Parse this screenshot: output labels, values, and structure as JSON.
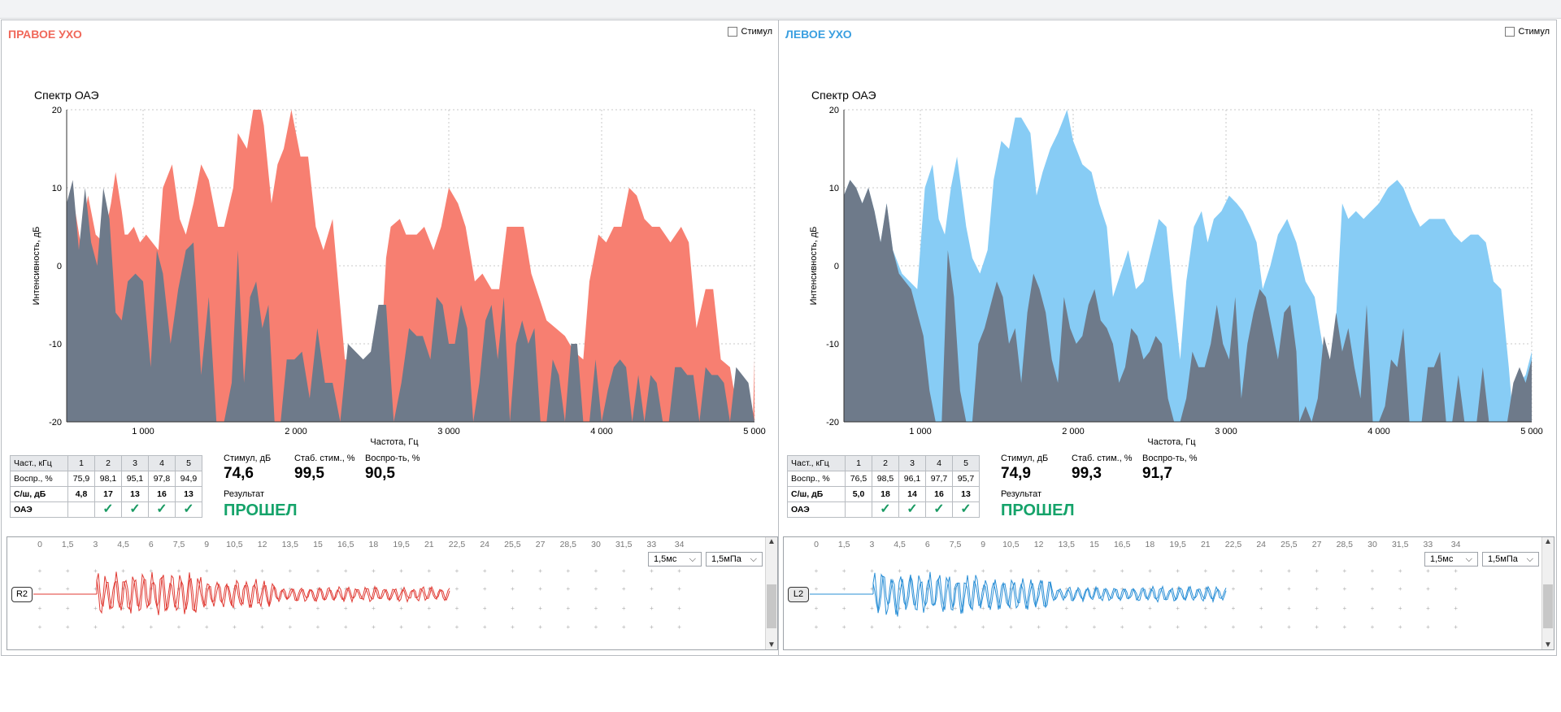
{
  "right_ear": {
    "title": "ПРАВОЕ УХО",
    "stim_label": "Стимул",
    "chart_title": "Спектр ОАЭ",
    "chart_data": {
      "type": "area",
      "title": "Спектр ОАЭ",
      "xlabel": "Частота, Гц",
      "ylabel": "Интенсивность, дБ",
      "xlim": [
        500,
        5000
      ],
      "ylim": [
        -20,
        20
      ],
      "x_ticks": [
        "1 000",
        "2 000",
        "3 000",
        "4 000",
        "5 000"
      ],
      "y_ticks": [
        "20",
        "10",
        "0",
        "-10",
        "-20"
      ],
      "grid": true,
      "colors": {
        "signal": "#f77f71",
        "noise": "#6e7a8a"
      },
      "signal": {
        "x": [
          500,
          540,
          590,
          640,
          690,
          740,
          790,
          820,
          860,
          880,
          900,
          940,
          980,
          1020,
          1060,
          1100,
          1130,
          1190,
          1240,
          1280,
          1330,
          1380,
          1430,
          1490,
          1530,
          1590,
          1620,
          1680,
          1720,
          1770,
          1790,
          1840,
          1880,
          1920,
          1970,
          2030,
          2080,
          2130,
          2180,
          2240,
          2280,
          2320,
          2380,
          2440,
          2500,
          2540,
          2590,
          2620,
          2680,
          2720,
          2790,
          2840,
          2900,
          2950,
          3000,
          3060,
          3110,
          3170,
          3220,
          3280,
          3330,
          3380,
          3440,
          3490,
          3540,
          3590,
          3640,
          3700,
          3760,
          3820,
          3880,
          3920,
          3980,
          4030,
          4080,
          4130,
          4180,
          4230,
          4280,
          4330,
          4380,
          4450,
          4520,
          4570,
          4620,
          4680,
          4730,
          4780,
          4840,
          4900,
          4930,
          4960,
          4990,
          5000
        ],
        "y": [
          5,
          9,
          3,
          9,
          4,
          3,
          8,
          12,
          7,
          4,
          4,
          5,
          3,
          4,
          3,
          2,
          10,
          13,
          6,
          4,
          8,
          13,
          11,
          5,
          5,
          10,
          17,
          15,
          20,
          20,
          18,
          8,
          13,
          15,
          20,
          14,
          14,
          5,
          2,
          6,
          -3,
          -12,
          -12,
          -15,
          -14,
          -17,
          1,
          5,
          6,
          4,
          4,
          5,
          2,
          5,
          10,
          8,
          5,
          -2,
          -1,
          -3,
          -3,
          5,
          5,
          5,
          -1,
          -4,
          -7,
          -8,
          -9,
          -11,
          -12,
          -2,
          4,
          3,
          5,
          5,
          10,
          9,
          6,
          5,
          5,
          3,
          5,
          3,
          -8,
          -3,
          -3,
          -12,
          -13,
          -20,
          -20,
          -20,
          -20,
          -12
        ]
      },
      "noise": {
        "x": [
          500,
          540,
          580,
          620,
          660,
          700,
          740,
          780,
          820,
          860,
          900,
          950,
          1000,
          1050,
          1090,
          1130,
          1180,
          1230,
          1280,
          1330,
          1380,
          1430,
          1480,
          1530,
          1580,
          1620,
          1660,
          1700,
          1740,
          1780,
          1820,
          1860,
          1900,
          1940,
          1990,
          2040,
          2090,
          2140,
          2190,
          2240,
          2290,
          2340,
          2390,
          2440,
          2490,
          2540,
          2590,
          2640,
          2690,
          2740,
          2790,
          2830,
          2880,
          2920,
          2960,
          3000,
          3040,
          3080,
          3120,
          3160,
          3200,
          3240,
          3280,
          3320,
          3360,
          3400,
          3440,
          3480,
          3520,
          3560,
          3600,
          3640,
          3680,
          3720,
          3760,
          3800,
          3840,
          3880,
          3920,
          3960,
          4000,
          4040,
          4080,
          4120,
          4160,
          4200,
          4240,
          4280,
          4320,
          4360,
          4400,
          4440,
          4480,
          4520,
          4560,
          4600,
          4640,
          4680,
          4720,
          4760,
          4800,
          4840,
          4880,
          4920,
          4960,
          5000
        ],
        "y": [
          8,
          11,
          2,
          10,
          3,
          0,
          10,
          6,
          -6,
          -7,
          -2,
          -1,
          -2,
          -13,
          2,
          -1,
          -10,
          -3,
          2,
          3,
          -14,
          -4,
          -20,
          -20,
          -15,
          2,
          -15,
          -4,
          -2,
          -8,
          -5,
          -20,
          -20,
          -12,
          -12,
          -11,
          -17,
          -8,
          -15,
          -15,
          -20,
          -10,
          -11,
          -12,
          -11,
          -5,
          -5,
          -20,
          -15,
          -8,
          -9,
          -9,
          -12,
          -4,
          -5,
          -10,
          -10,
          -5,
          -8,
          -20,
          -15,
          -7,
          -5,
          -12,
          -4,
          -20,
          -10,
          -7,
          -10,
          -8,
          -20,
          -20,
          -12,
          -14,
          -20,
          -10,
          -10,
          -20,
          -20,
          -12,
          -20,
          -16,
          -13,
          -12,
          -13,
          -20,
          -14,
          -20,
          -14,
          -15,
          -20,
          -20,
          -13,
          -13,
          -14,
          -14,
          -20,
          -13,
          -14,
          -14,
          -15,
          -20,
          -13,
          -14,
          -15,
          -20
        ]
      }
    },
    "table": {
      "header": [
        "Част., кГц",
        "1",
        "2",
        "3",
        "4",
        "5"
      ],
      "repro": [
        "Воспр., %",
        "75,9",
        "98,1",
        "95,1",
        "97,8",
        "94,9"
      ],
      "snr": [
        "С/ш, дБ",
        "4,8",
        "17",
        "13",
        "16",
        "13"
      ],
      "oae_label": "ОАЭ",
      "oae_checks": [
        false,
        true,
        true,
        true,
        true
      ]
    },
    "metrics": {
      "stim_label": "Стимул, дБ",
      "stim_value": "74,6",
      "stab_label": "Стаб. стим., %",
      "stab_value": "99,5",
      "repro_label": "Воспро-ть, %",
      "repro_value": "90,5"
    },
    "result_label": "Результат",
    "result_value": "ПРОШЕЛ",
    "wave": {
      "tag": "R2",
      "time_select": "1,5мс",
      "pressure_select": "1,5мПа",
      "ticks": [
        "0",
        "1,5",
        "3",
        "4,5",
        "6",
        "7,5",
        "9",
        "10,5",
        "12",
        "13,5",
        "15",
        "16,5",
        "18",
        "19,5",
        "21",
        "22,5",
        "24",
        "25,5",
        "27",
        "28,5",
        "30",
        "31,5",
        "33",
        "34"
      ]
    }
  },
  "left_ear": {
    "title": "ЛЕВОЕ УХО",
    "stim_label": "Стимул",
    "chart_title": "Спектр ОАЭ",
    "chart_data": {
      "type": "area",
      "title": "Спектр ОАЭ",
      "xlabel": "Частота, Гц",
      "ylabel": "Интенсивность, дБ",
      "xlim": [
        500,
        5000
      ],
      "ylim": [
        -20,
        20
      ],
      "x_ticks": [
        "1 000",
        "2 000",
        "3 000",
        "4 000",
        "5 000"
      ],
      "y_ticks": [
        "20",
        "10",
        "0",
        "-10",
        "-20"
      ],
      "grid": true,
      "colors": {
        "signal": "#87ccf5",
        "noise": "#6e7a8a"
      },
      "signal": {
        "x": [
          500,
          540,
          580,
          620,
          660,
          700,
          740,
          780,
          820,
          880,
          930,
          980,
          1030,
          1080,
          1120,
          1160,
          1200,
          1240,
          1300,
          1340,
          1390,
          1440,
          1480,
          1530,
          1580,
          1620,
          1660,
          1720,
          1760,
          1800,
          1850,
          1900,
          1960,
          2000,
          2060,
          2120,
          2170,
          2220,
          2260,
          2310,
          2360,
          2410,
          2460,
          2510,
          2560,
          2610,
          2650,
          2700,
          2740,
          2790,
          2840,
          2880,
          2920,
          2970,
          3020,
          3070,
          3110,
          3160,
          3200,
          3240,
          3290,
          3340,
          3400,
          3460,
          3520,
          3580,
          3630,
          3700,
          3760,
          3800,
          3850,
          3900,
          3950,
          4000,
          4060,
          4120,
          4160,
          4220,
          4270,
          4330,
          4380,
          4430,
          4490,
          4540,
          4600,
          4650,
          4700,
          4750,
          4800,
          4850,
          4880,
          4920,
          4960,
          5000
        ],
        "y": [
          9,
          11,
          10,
          8,
          10,
          7,
          3,
          8,
          2,
          -1,
          -2,
          -3,
          10,
          13,
          6,
          4,
          10,
          14,
          5,
          1,
          -1,
          2,
          11,
          16,
          15,
          19,
          19,
          17,
          9,
          12,
          15,
          17,
          20,
          16,
          13,
          12,
          8,
          5,
          -4,
          -1,
          2,
          -3,
          -2,
          2,
          6,
          5,
          -3,
          -12,
          -2,
          5,
          7,
          3,
          6,
          7,
          9,
          8,
          7,
          5,
          3,
          -3,
          0,
          4,
          6,
          3,
          -2,
          -4,
          -10,
          -14,
          8,
          6,
          7,
          6,
          7,
          8,
          10,
          11,
          10,
          7,
          5,
          6,
          6,
          6,
          4,
          3,
          4,
          4,
          3,
          -2,
          -3,
          -13,
          -20,
          -15,
          -14,
          -11
        ]
      },
      "noise": {
        "x": [
          500,
          540,
          580,
          620,
          660,
          700,
          740,
          780,
          820,
          860,
          900,
          940,
          980,
          1020,
          1060,
          1100,
          1140,
          1180,
          1220,
          1260,
          1300,
          1340,
          1380,
          1420,
          1460,
          1500,
          1540,
          1580,
          1620,
          1660,
          1700,
          1740,
          1780,
          1820,
          1860,
          1900,
          1940,
          1980,
          2020,
          2060,
          2100,
          2140,
          2180,
          2220,
          2260,
          2300,
          2340,
          2380,
          2420,
          2460,
          2500,
          2540,
          2580,
          2620,
          2660,
          2700,
          2740,
          2780,
          2820,
          2860,
          2900,
          2940,
          2980,
          3020,
          3060,
          3100,
          3140,
          3180,
          3220,
          3260,
          3300,
          3340,
          3380,
          3420,
          3460,
          3480,
          3520,
          3560,
          3600,
          3640,
          3680,
          3720,
          3760,
          3800,
          3840,
          3880,
          3920,
          3960,
          4000,
          4040,
          4080,
          4120,
          4160,
          4200,
          4240,
          4280,
          4320,
          4360,
          4400,
          4440,
          4480,
          4520,
          4560,
          4600,
          4640,
          4680,
          4720,
          4760,
          4800,
          4840,
          4880,
          4920,
          4960,
          5000
        ],
        "y": [
          9,
          11,
          10,
          8,
          10,
          7,
          3,
          8,
          2,
          -1,
          -2,
          -3,
          -6,
          -9,
          -16,
          -20,
          -20,
          2,
          -4,
          -16,
          -20,
          -20,
          -10,
          -8,
          -5,
          -2,
          -4,
          -10,
          -8,
          -15,
          -6,
          -1,
          -3,
          -6,
          -12,
          -15,
          -4,
          -8,
          -10,
          -9,
          -5,
          -3,
          -7,
          -8,
          -10,
          -15,
          -13,
          -8,
          -9,
          -12,
          -11,
          -9,
          -10,
          -17,
          -20,
          -20,
          -17,
          -11,
          -13,
          -13,
          -10,
          -5,
          -10,
          -12,
          -4,
          -17,
          -10,
          -6,
          -3,
          -4,
          -8,
          -12,
          -6,
          -5,
          -11,
          -20,
          -18,
          -20,
          -17,
          -9,
          -12,
          -6,
          -11,
          -8,
          -13,
          -17,
          -5,
          -20,
          -20,
          -18,
          -12,
          -13,
          -8,
          -20,
          -20,
          -20,
          -13,
          -13,
          -11,
          -20,
          -20,
          -14,
          -20,
          -20,
          -20,
          -13,
          -20,
          -20,
          -20,
          -20,
          -15,
          -13,
          -15,
          -12
        ]
      }
    },
    "table": {
      "header": [
        "Част., кГц",
        "1",
        "2",
        "3",
        "4",
        "5"
      ],
      "repro": [
        "Воспр., %",
        "76,5",
        "98,5",
        "96,1",
        "97,7",
        "95,7"
      ],
      "snr": [
        "С/ш, дБ",
        "5,0",
        "18",
        "14",
        "16",
        "13"
      ],
      "oae_label": "ОАЭ",
      "oae_checks": [
        false,
        true,
        true,
        true,
        true
      ]
    },
    "metrics": {
      "stim_label": "Стимул, дБ",
      "stim_value": "74,9",
      "stab_label": "Стаб. стим., %",
      "stab_value": "99,3",
      "repro_label": "Воспро-ть, %",
      "repro_value": "91,7"
    },
    "result_label": "Результат",
    "result_value": "ПРОШЕЛ",
    "wave": {
      "tag": "L2",
      "time_select": "1,5мс",
      "pressure_select": "1,5мПа",
      "ticks": [
        "0",
        "1,5",
        "3",
        "4,5",
        "6",
        "7,5",
        "9",
        "10,5",
        "12",
        "13,5",
        "15",
        "16,5",
        "18",
        "19,5",
        "21",
        "22,5",
        "24",
        "25,5",
        "27",
        "28,5",
        "30",
        "31,5",
        "33",
        "34"
      ]
    }
  },
  "colors": {
    "right_title": "#f0685a",
    "left_title": "#3a9fe0",
    "right_wave": "#e03a33",
    "left_wave": "#2a8fd6",
    "pass": "#15a36a"
  }
}
